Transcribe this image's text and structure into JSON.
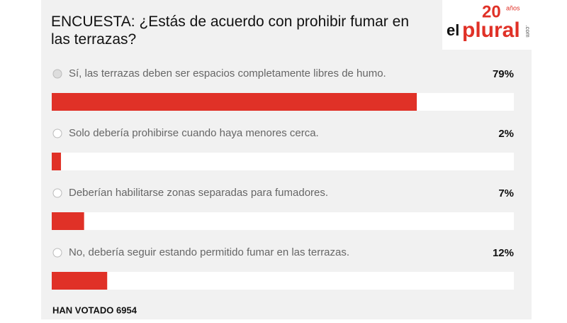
{
  "chart_data": {
    "type": "hbar",
    "title": "ENCUESTA: ¿Estás de acuerdo con prohibir fumar en las terrazas?",
    "categories": [
      "Sí, las terrazas deben ser espacios completamente libres de humo.",
      "Solo debería prohibirse cuando haya menores cerca.",
      "Deberían habilitarse zonas separadas para fumadores.",
      "No, debería seguir estando permitido fumar en las terrazas."
    ],
    "values": [
      79,
      2,
      7,
      12
    ],
    "value_labels": [
      "79%",
      "2%",
      "7%",
      "12%"
    ],
    "xlim": [
      0,
      100
    ],
    "color": "#e03127",
    "footer": "HAN VOTADO 6954"
  },
  "logo": {
    "number": "20",
    "suffix": "años",
    "brand_prefix": "el",
    "brand": "plural",
    "domain": ".com"
  }
}
